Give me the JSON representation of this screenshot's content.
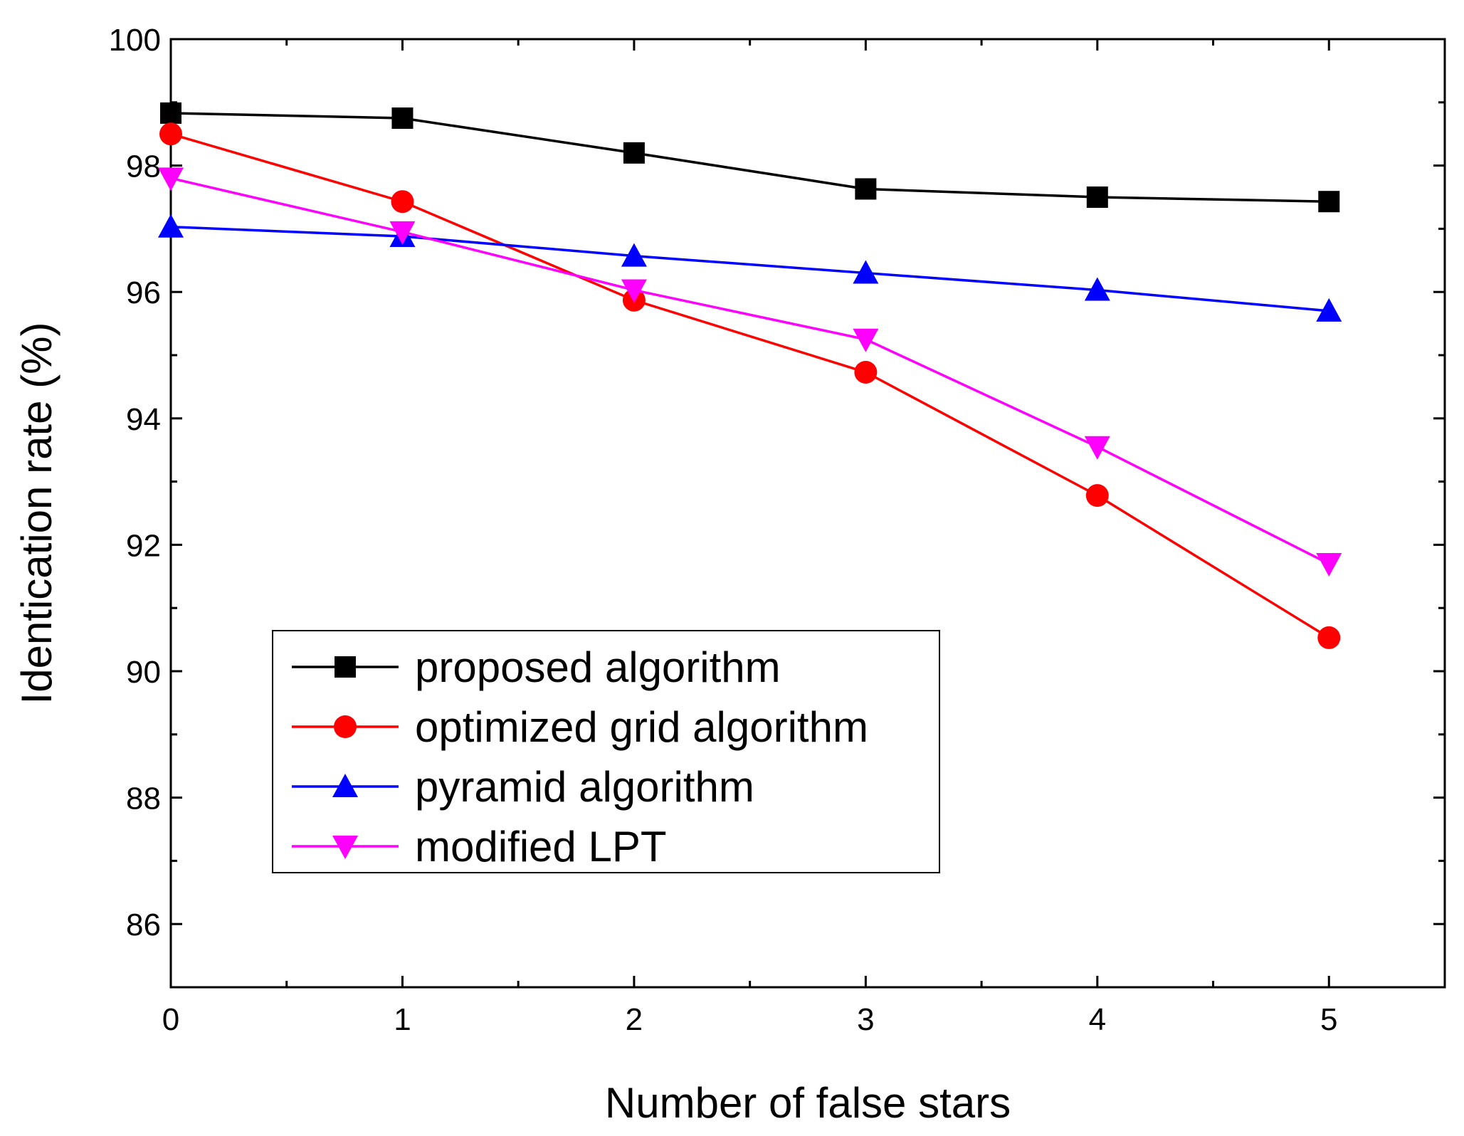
{
  "chart_data": {
    "type": "line",
    "title": "",
    "xlabel": "Number of false stars",
    "ylabel": "Identication rate (%)",
    "x": [
      0,
      1,
      2,
      3,
      4,
      5
    ],
    "xlim": [
      0,
      5.5
    ],
    "ylim": [
      85,
      100
    ],
    "xticks": [
      "0",
      "1",
      "2",
      "3",
      "4",
      "5"
    ],
    "yticks": [
      "86",
      "88",
      "90",
      "92",
      "94",
      "96",
      "98",
      "100"
    ],
    "legend_position": "lower-left",
    "series": [
      {
        "name": "proposed algorithm",
        "color": "#000000",
        "marker": "square",
        "values": [
          98.83,
          98.75,
          98.2,
          97.63,
          97.5,
          97.43
        ]
      },
      {
        "name": "optimized grid algorithm",
        "color": "#ff0000",
        "marker": "circle",
        "values": [
          98.5,
          97.43,
          95.87,
          94.73,
          92.78,
          90.53
        ]
      },
      {
        "name": "pyramid algorithm",
        "color": "#0000ff",
        "marker": "triangle-up",
        "values": [
          97.03,
          96.88,
          96.57,
          96.3,
          96.03,
          95.7
        ]
      },
      {
        "name": "modified LPT",
        "color": "#ff00ff",
        "marker": "triangle-down",
        "values": [
          97.8,
          96.95,
          96.03,
          95.25,
          93.55,
          91.7
        ]
      }
    ]
  }
}
